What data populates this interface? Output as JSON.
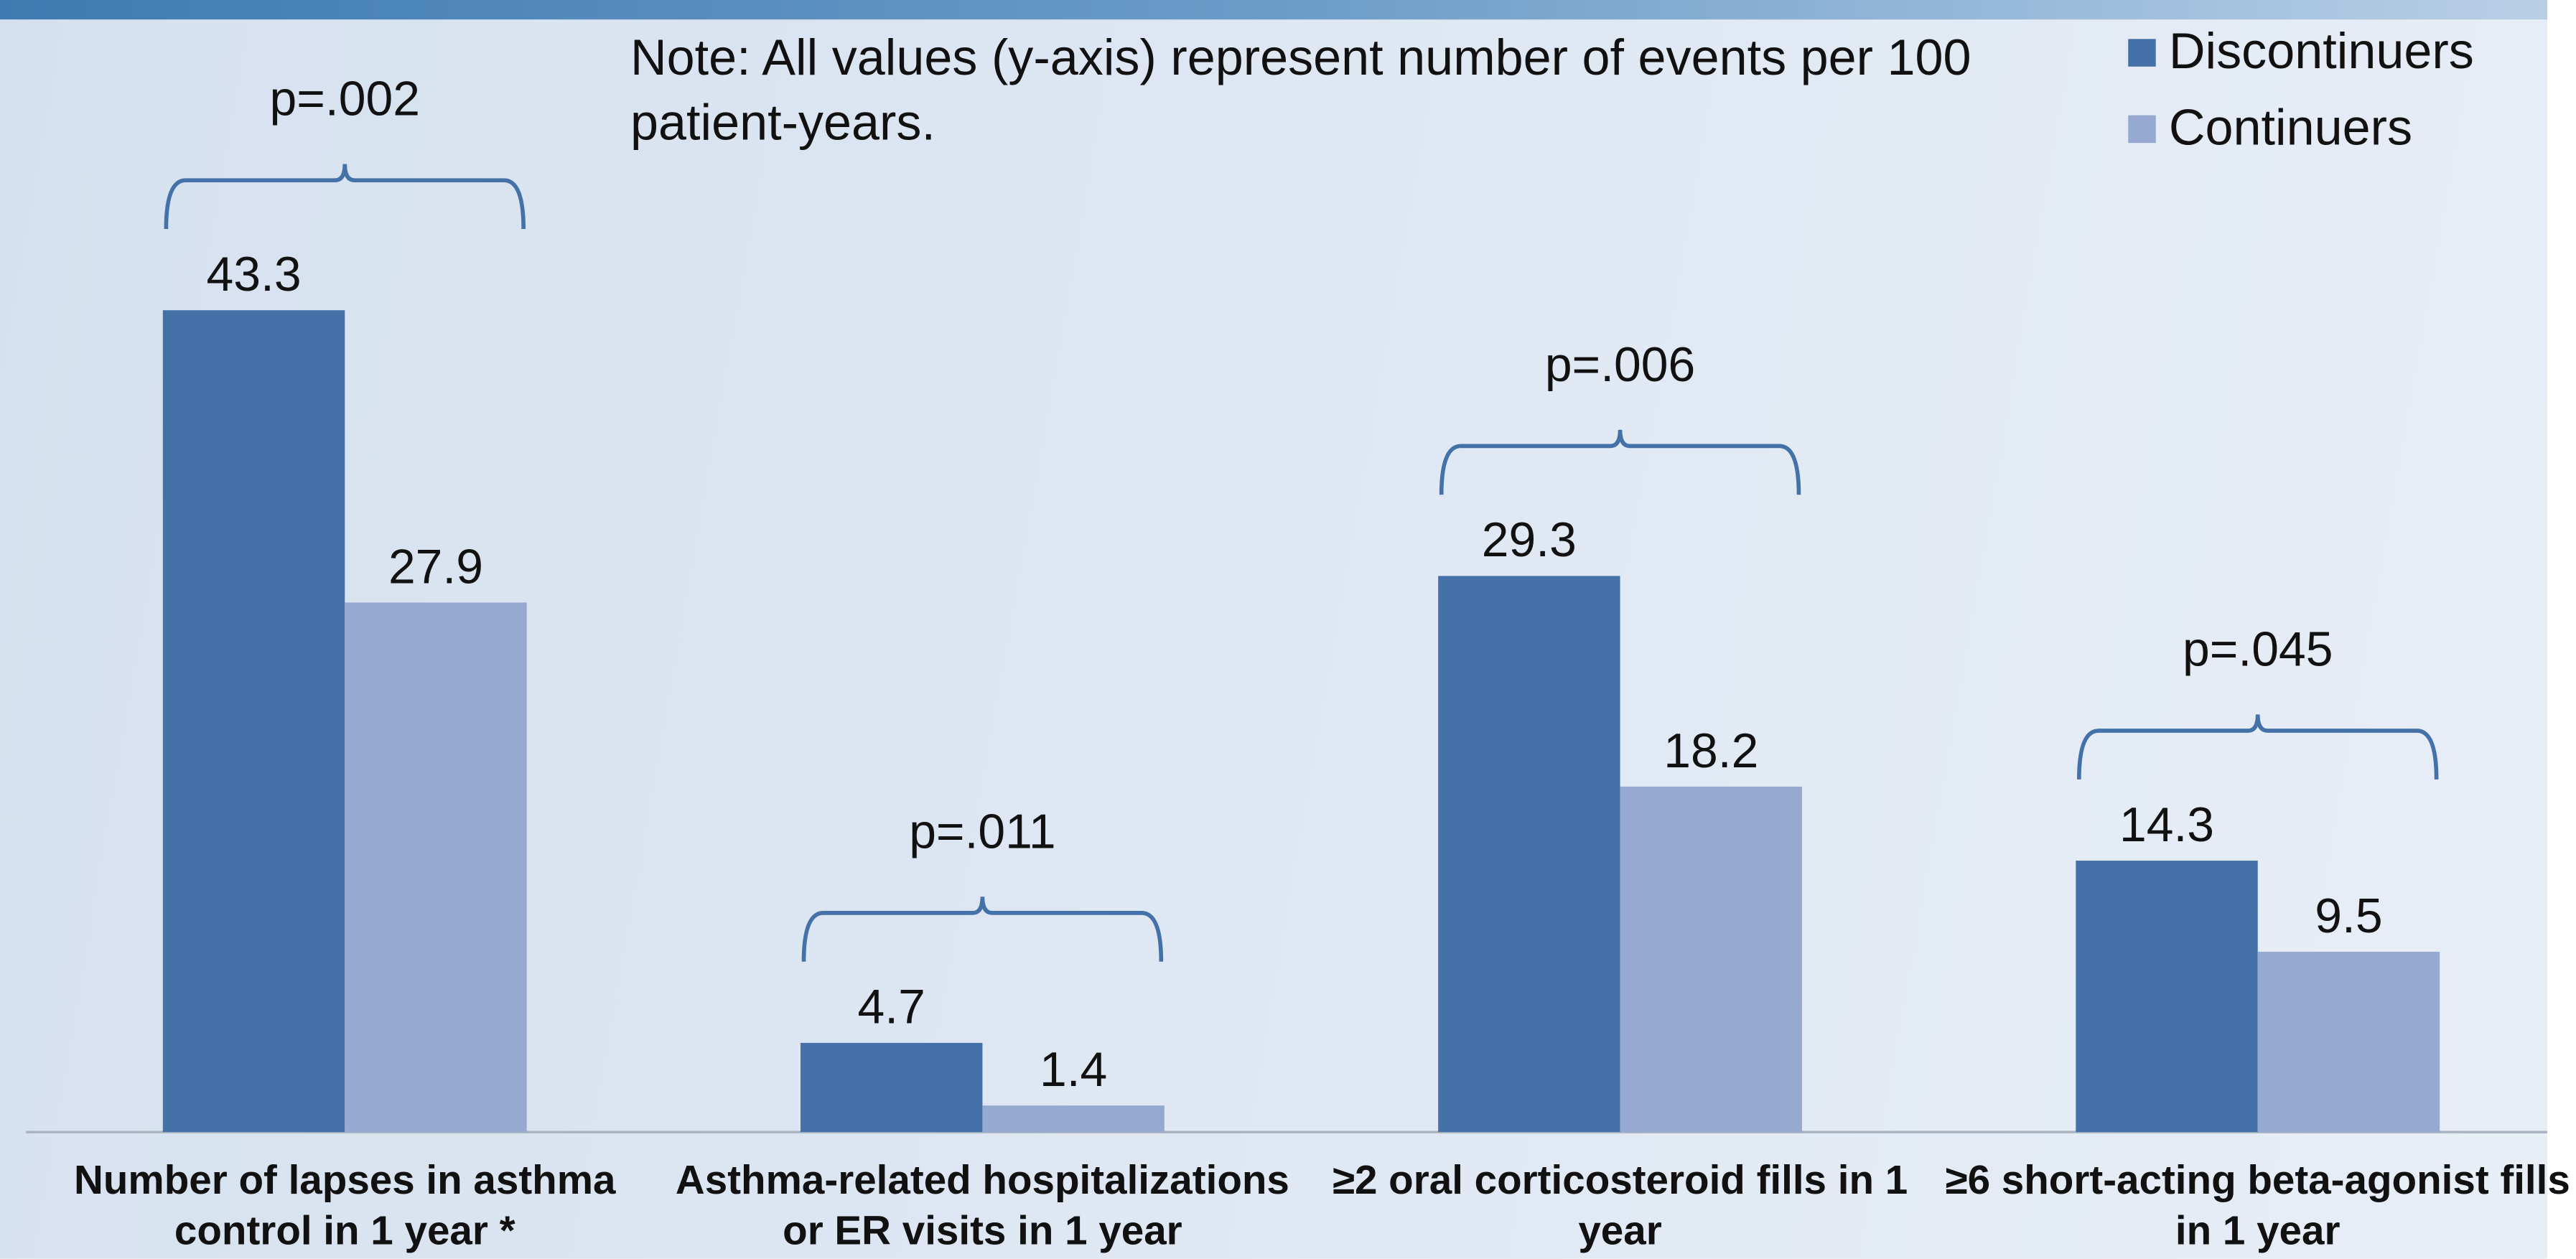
{
  "chart_data": {
    "type": "bar",
    "note": "Note: All values (y-axis) represent number of events per 100 patient-years.",
    "categories": [
      "Number of lapses in asthma control in 1 year *",
      "Asthma-related hospitalizations or ER visits in 1 year",
      "≥2 oral corticosteroid fills in 1 year",
      "≥6 short-acting beta-agonist fills in 1 year"
    ],
    "series": [
      {
        "name": "Discontinuers",
        "color": "#4472a8",
        "values": [
          43.3,
          4.7,
          29.3,
          14.3
        ]
      },
      {
        "name": "Continuers",
        "color": "#95a9d1",
        "values": [
          27.9,
          1.4,
          18.2,
          9.5
        ]
      }
    ],
    "annotations": [
      "p=.002",
      "p=.011",
      "p=.006",
      "p=.045"
    ]
  }
}
